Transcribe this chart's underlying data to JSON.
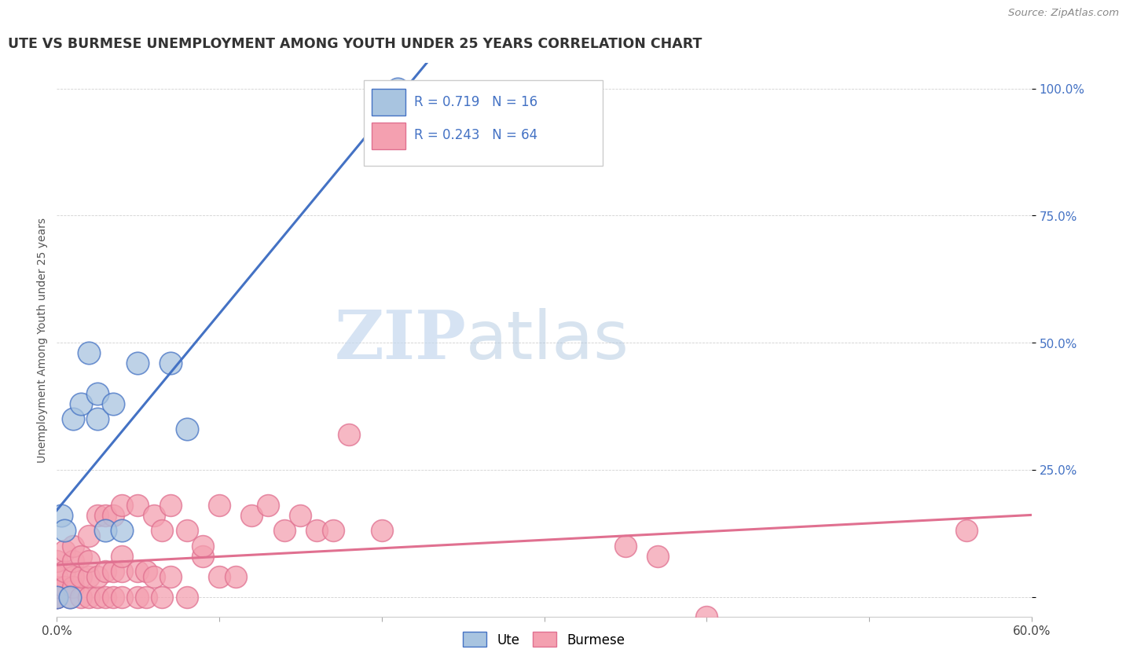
{
  "title": "UTE VS BURMESE UNEMPLOYMENT AMONG YOUTH UNDER 25 YEARS CORRELATION CHART",
  "source": "Source: ZipAtlas.com",
  "ylabel": "Unemployment Among Youth under 25 years",
  "xlim": [
    0.0,
    0.6
  ],
  "ylim": [
    -0.04,
    1.05
  ],
  "ute_R": 0.719,
  "ute_N": 16,
  "burmese_R": 0.243,
  "burmese_N": 64,
  "ute_color": "#a8c4e0",
  "burmese_color": "#f4a0b0",
  "ute_line_color": "#4472c4",
  "burmese_line_color": "#e07090",
  "watermark_zip": "ZIP",
  "watermark_atlas": "atlas",
  "ute_points_x": [
    0.0,
    0.003,
    0.005,
    0.008,
    0.01,
    0.015,
    0.02,
    0.025,
    0.025,
    0.03,
    0.035,
    0.04,
    0.05,
    0.07,
    0.08,
    0.21
  ],
  "ute_points_y": [
    0.0,
    0.16,
    0.13,
    0.0,
    0.35,
    0.38,
    0.48,
    0.4,
    0.35,
    0.13,
    0.38,
    0.13,
    0.46,
    0.46,
    0.33,
    1.0
  ],
  "burmese_points_x": [
    0.0,
    0.0,
    0.0,
    0.0,
    0.0,
    0.0,
    0.005,
    0.005,
    0.005,
    0.008,
    0.01,
    0.01,
    0.01,
    0.01,
    0.015,
    0.015,
    0.015,
    0.02,
    0.02,
    0.02,
    0.02,
    0.025,
    0.025,
    0.025,
    0.03,
    0.03,
    0.03,
    0.035,
    0.035,
    0.035,
    0.04,
    0.04,
    0.04,
    0.04,
    0.05,
    0.05,
    0.05,
    0.055,
    0.055,
    0.06,
    0.06,
    0.065,
    0.065,
    0.07,
    0.07,
    0.08,
    0.08,
    0.09,
    0.09,
    0.1,
    0.1,
    0.11,
    0.12,
    0.13,
    0.14,
    0.15,
    0.16,
    0.17,
    0.18,
    0.2,
    0.35,
    0.37,
    0.4,
    0.56
  ],
  "burmese_points_y": [
    0.0,
    0.0,
    0.0,
    0.02,
    0.04,
    0.07,
    0.02,
    0.05,
    0.09,
    0.0,
    0.02,
    0.04,
    0.07,
    0.1,
    0.0,
    0.04,
    0.08,
    0.0,
    0.04,
    0.07,
    0.12,
    0.0,
    0.04,
    0.16,
    0.0,
    0.05,
    0.16,
    0.0,
    0.05,
    0.16,
    0.0,
    0.05,
    0.08,
    0.18,
    0.0,
    0.05,
    0.18,
    0.0,
    0.05,
    0.04,
    0.16,
    0.0,
    0.13,
    0.04,
    0.18,
    0.0,
    0.13,
    0.08,
    0.1,
    0.04,
    0.18,
    0.04,
    0.16,
    0.18,
    0.13,
    0.16,
    0.13,
    0.13,
    0.32,
    0.13,
    0.1,
    0.08,
    -0.04,
    0.13
  ]
}
